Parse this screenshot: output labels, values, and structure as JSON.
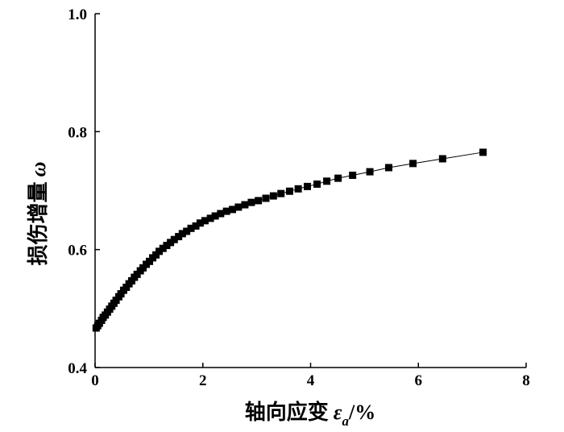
{
  "chart_data": {
    "type": "line",
    "marker": "square",
    "colors": {
      "line": "#000000",
      "marker": "#000000"
    },
    "title": "",
    "xlabel": {
      "text": "轴向应变",
      "symbol": "ε",
      "subscript": "a",
      "unit": "/%"
    },
    "ylabel": {
      "text": "损伤增量",
      "symbol": "ω"
    },
    "xlim": [
      0,
      8
    ],
    "ylim": [
      0.4,
      1.0
    ],
    "x_ticks": [
      0,
      2,
      4,
      6,
      8
    ],
    "y_ticks": [
      0.4,
      0.6,
      0.8,
      1.0
    ],
    "x_tick_labels": [
      "0",
      "2",
      "4",
      "6",
      "8"
    ],
    "y_tick_labels": [
      "0.4",
      "0.6",
      "0.8",
      "1.0"
    ],
    "grid": false,
    "legend": "none",
    "series": [
      {
        "x": [
          0.02,
          0.05,
          0.08,
          0.12,
          0.15,
          0.19,
          0.23,
          0.27,
          0.31,
          0.35,
          0.39,
          0.44,
          0.48,
          0.53,
          0.58,
          0.63,
          0.68,
          0.73,
          0.78,
          0.84,
          0.89,
          0.95,
          1.01,
          1.07,
          1.13,
          1.19,
          1.26,
          1.33,
          1.4,
          1.47,
          1.55,
          1.62,
          1.7,
          1.78,
          1.87,
          1.95,
          2.04,
          2.14,
          2.23,
          2.33,
          2.44,
          2.55,
          2.66,
          2.78,
          2.9,
          3.03,
          3.17,
          3.31,
          3.45,
          3.61,
          3.77,
          3.94,
          4.12,
          4.3,
          4.51,
          4.78,
          5.1,
          5.45,
          5.9,
          6.45,
          7.2
        ],
        "y": [
          0.467,
          0.471,
          0.475,
          0.48,
          0.485,
          0.489,
          0.494,
          0.499,
          0.504,
          0.509,
          0.514,
          0.52,
          0.525,
          0.531,
          0.536,
          0.542,
          0.547,
          0.553,
          0.558,
          0.564,
          0.569,
          0.575,
          0.58,
          0.586,
          0.591,
          0.597,
          0.602,
          0.607,
          0.612,
          0.617,
          0.622,
          0.627,
          0.631,
          0.636,
          0.64,
          0.645,
          0.649,
          0.653,
          0.657,
          0.661,
          0.665,
          0.668,
          0.672,
          0.676,
          0.68,
          0.683,
          0.687,
          0.691,
          0.695,
          0.699,
          0.703,
          0.707,
          0.711,
          0.716,
          0.721,
          0.726,
          0.732,
          0.739,
          0.746,
          0.754,
          0.765
        ]
      }
    ]
  }
}
